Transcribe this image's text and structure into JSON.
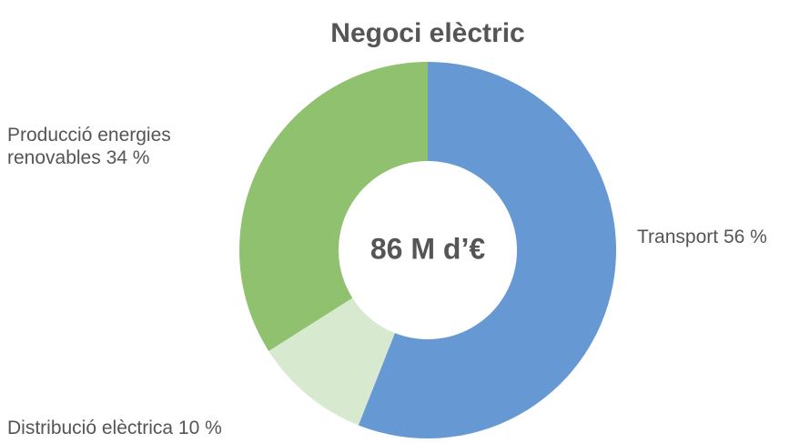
{
  "chart_data": {
    "type": "donut",
    "title": "Negoci elèctric",
    "center_label": "86 M d’€",
    "categories": [
      "Transport",
      "Distribució elèctrica",
      "Producció energies renovables"
    ],
    "values": [
      56,
      10,
      34
    ],
    "value_labels": [
      "56 %",
      "10 %",
      "34 %"
    ],
    "colors": [
      "#6699d3",
      "#d7e9cf",
      "#8fc16f"
    ]
  }
}
